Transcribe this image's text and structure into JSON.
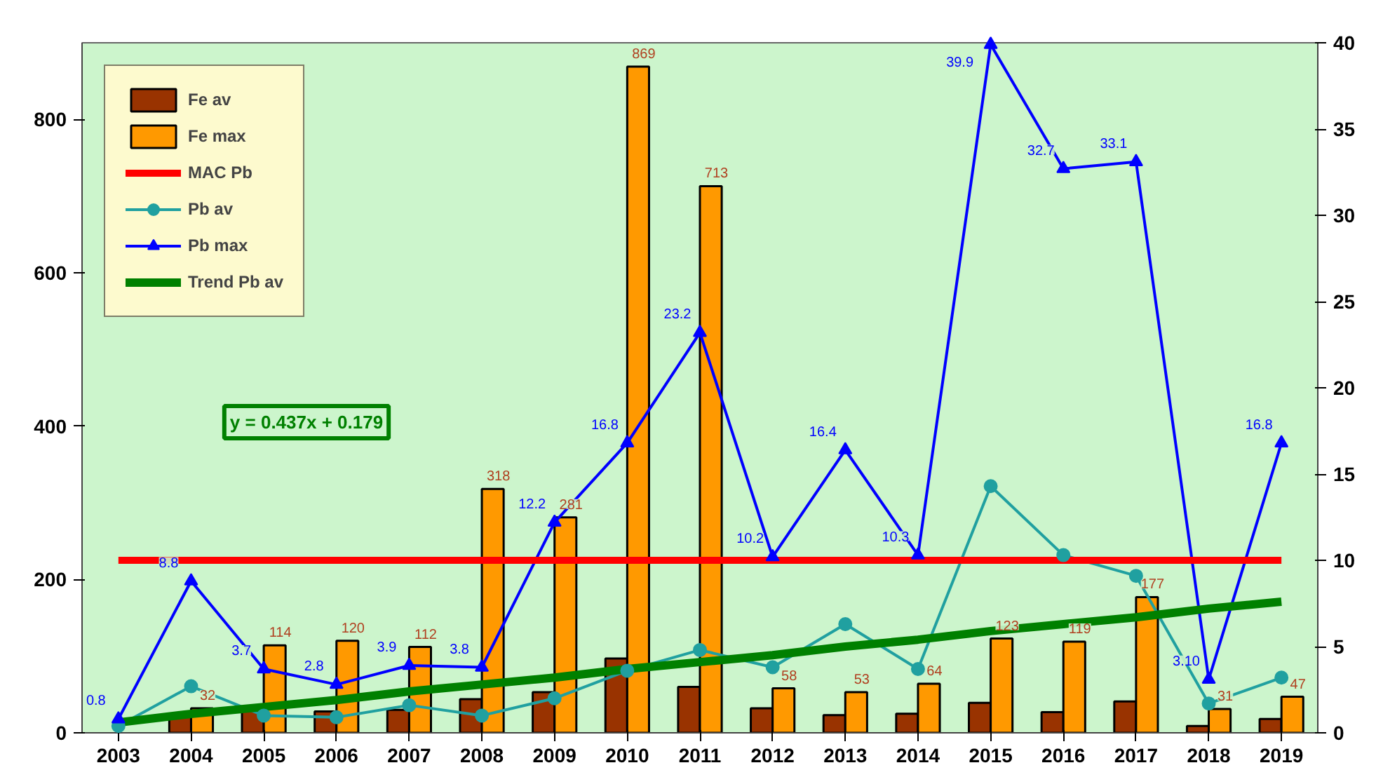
{
  "chart_data": {
    "type": "bar",
    "categories": [
      "2003",
      "2004",
      "2005",
      "2006",
      "2007",
      "2008",
      "2009",
      "2010",
      "2011",
      "2012",
      "2013",
      "2014",
      "2015",
      "2016",
      "2017",
      "2018",
      "2019"
    ],
    "series": [
      {
        "name": "Fe av",
        "color": "#993300",
        "values": [
          null,
          21,
          30,
          28,
          30,
          44,
          53,
          97,
          60,
          32,
          23,
          25,
          39,
          27,
          41,
          9,
          18
        ]
      },
      {
        "name": "Fe max",
        "color": "#ff9900",
        "values": [
          null,
          32,
          114,
          120,
          112,
          318,
          281,
          869,
          713,
          58,
          53,
          64,
          123,
          119,
          177,
          31,
          47
        ],
        "value_labels": [
          null,
          "32",
          "114",
          "120",
          "112",
          "318",
          "281",
          "869",
          "713",
          "58",
          "53",
          "64",
          "123",
          "119",
          "177",
          "31",
          "47"
        ]
      },
      {
        "name": "Pb av",
        "type": "line",
        "axis": "y2",
        "color": "#20a0a0",
        "marker": "circle",
        "values": [
          0.4,
          2.7,
          1.0,
          0.9,
          1.6,
          1.0,
          2.0,
          3.6,
          4.8,
          3.8,
          6.3,
          3.7,
          14.3,
          10.3,
          9.1,
          1.7,
          3.2
        ]
      },
      {
        "name": "Pb max",
        "type": "line",
        "axis": "y2",
        "color": "#0000ff",
        "marker": "triangle",
        "values": [
          0.8,
          8.8,
          3.7,
          2.8,
          3.9,
          3.8,
          12.2,
          16.8,
          23.2,
          10.2,
          16.4,
          10.3,
          39.9,
          32.7,
          33.1,
          3.1,
          16.8
        ],
        "value_labels": [
          "0.8",
          "8.8",
          "3.7",
          "2.8",
          "3.9",
          "3.8",
          "12.2",
          "16.8",
          "23.2",
          "10.2",
          "16.4",
          "10.3",
          "39.9",
          "32.7",
          "33.1",
          "3.10",
          "16.8"
        ]
      },
      {
        "name": "Trend Pb av",
        "type": "line",
        "axis": "y2",
        "color": "#008000",
        "values": [
          0.6,
          1.1,
          1.5,
          1.9,
          2.4,
          2.8,
          3.2,
          3.7,
          4.1,
          4.5,
          5.0,
          5.4,
          5.9,
          6.3,
          6.7,
          7.2,
          7.6
        ]
      }
    ],
    "ref_lines": [
      {
        "axis": "y2",
        "value": 10,
        "label": "MAC Pb",
        "color": "#ff0000"
      }
    ],
    "annotations": [
      "y = 0.437x + 0.179"
    ],
    "ylim": [
      0,
      900
    ],
    "yticks": [
      0,
      200,
      400,
      600,
      800
    ],
    "y2lim": [
      0,
      40
    ],
    "y2ticks": [
      0,
      5,
      10,
      15,
      20,
      25,
      30,
      35,
      40
    ],
    "grid": false,
    "legend": "top left"
  }
}
